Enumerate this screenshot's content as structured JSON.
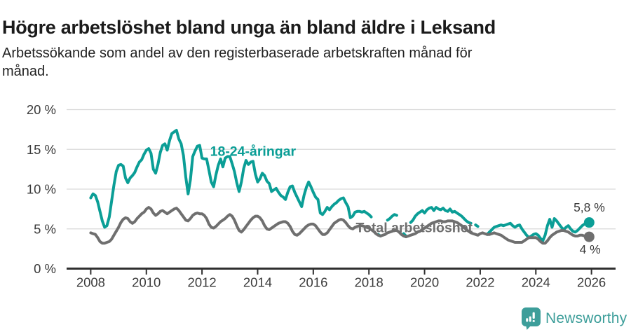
{
  "header": {
    "title": "Högre arbetslöshet bland unga än bland äldre i Leksand",
    "subtitle_lines": [
      "Arbetssökande som andel av den registerbaserade arbetskraften månad för",
      "månad."
    ]
  },
  "footer": {
    "brand": "Newsworthy"
  },
  "colors": {
    "youth_line": "#0b9e96",
    "total_line": "#6f6f6f",
    "grid": "#d9d9d9",
    "axis": "#2f2f2f",
    "logo_teal": "#3d9e9a"
  },
  "chart_data": {
    "type": "line",
    "title": "Högre arbetslöshet bland unga än bland äldre i Leksand",
    "subtitle": "Arbetssökande som andel av den registerbaserade arbetskraften månad för månad.",
    "x_unit": "month",
    "x_range": [
      2008,
      2026
    ],
    "ylim": [
      0,
      20
    ],
    "grid": true,
    "y_ticks": [
      {
        "value": 0,
        "label": "0 %"
      },
      {
        "value": 5,
        "label": "5 %"
      },
      {
        "value": 10,
        "label": "10 %"
      },
      {
        "value": 15,
        "label": "15 %"
      },
      {
        "value": 20,
        "label": "20 %"
      }
    ],
    "x_ticks": [
      {
        "year": 2008,
        "label": "2008"
      },
      {
        "year": 2010,
        "label": "2010"
      },
      {
        "year": 2012,
        "label": "2012"
      },
      {
        "year": 2014,
        "label": "2014"
      },
      {
        "year": 2016,
        "label": "2016"
      },
      {
        "year": 2018,
        "label": "2018"
      },
      {
        "year": 2020,
        "label": "2020"
      },
      {
        "year": 2022,
        "label": "2022"
      },
      {
        "year": 2024,
        "label": "2024"
      },
      {
        "year": 2026,
        "label": "2026"
      }
    ],
    "series": [
      {
        "name": "18-24-åringar",
        "color": "#0b9e96",
        "end_value_label": "5,8 %",
        "start": "2008-01",
        "freq": "monthly",
        "values_by_year": {
          "2008": [
            8.9,
            9.4,
            9.2,
            8.4,
            7.2,
            6.0,
            5.2,
            5.4,
            6.5,
            8.5,
            10.5,
            12.2
          ],
          "2009": [
            13.0,
            13.1,
            12.9,
            11.4,
            10.8,
            11.4,
            11.7,
            12.1,
            12.8,
            13.4,
            13.7,
            14.4
          ],
          "2010": [
            14.9,
            15.1,
            14.5,
            12.5,
            12.0,
            13.1,
            14.6,
            15.5,
            15.7,
            14.9,
            16.1,
            17.0
          ],
          "2011": [
            17.2,
            17.4,
            16.3,
            15.7,
            14.2,
            11.5,
            9.4,
            11.2,
            14.1,
            14.8,
            15.4,
            15.5
          ],
          "2012": [
            13.9,
            13.8,
            13.8,
            12.4,
            10.9,
            10.3,
            11.8,
            13.0,
            13.8,
            12.8,
            13.9,
            14.1
          ],
          "2013": [
            14.1,
            13.2,
            12.2,
            10.8,
            9.7,
            10.9,
            12.6,
            13.6,
            13.1,
            13.4,
            13.5,
            11.9
          ],
          "2014": [
            10.9,
            11.3,
            12.0,
            11.7,
            11.0,
            10.7,
            9.7,
            9.9,
            10.1,
            9.6,
            9.2,
            9.0
          ],
          "2015": [
            8.7,
            9.6,
            10.3,
            10.4,
            9.6,
            9.0,
            8.4,
            7.8,
            9.2,
            10.2,
            10.9,
            10.3
          ],
          "2016": [
            9.6,
            9.0,
            8.7,
            7.0,
            6.8,
            7.2,
            7.7,
            7.4,
            7.8,
            8.1,
            8.3,
            8.6
          ],
          "2017": [
            8.8,
            8.9,
            8.3,
            7.8,
            6.4,
            6.6,
            7.1,
            7.2,
            7.2,
            7.1,
            7.2,
            7.0
          ],
          "2018": [
            6.8,
            6.5,
            null,
            null,
            4.3,
            4.1,
            null,
            null,
            6.1,
            6.3,
            6.6,
            6.8
          ],
          "2019": [
            6.7,
            null,
            null,
            4.4,
            4.1,
            null,
            5.8,
            6.1,
            6.6,
            6.9,
            7.1,
            7.3
          ],
          "2020": [
            7.0,
            7.4,
            7.6,
            7.7,
            7.3,
            7.7,
            7.5,
            7.4,
            7.6,
            7.3,
            7.2,
            7.5
          ],
          "2021": [
            7.1,
            7.2,
            7.0,
            6.8,
            6.6,
            6.3,
            6.0,
            5.8,
            5.7,
            null,
            5.5,
            5.3
          ],
          "2022": [
            null,
            null,
            null,
            4.3,
            4.6,
            4.9,
            5.2,
            5.3,
            5.4,
            5.5,
            5.4,
            5.5
          ],
          "2023": [
            5.6,
            5.7,
            5.4,
            5.2,
            5.4,
            5.5,
            5.0,
            4.6,
            4.2,
            3.9,
            4.1,
            4.3
          ],
          "2024": [
            4.4,
            4.2,
            3.8,
            3.5,
            4.2,
            5.4,
            6.2,
            5.2,
            6.3,
            6.0,
            5.6,
            5.2
          ],
          "2025": [
            4.9,
            5.2,
            5.4,
            5.0,
            4.7,
            4.6,
            4.8,
            5.1,
            5.4,
            5.6,
            5.7,
            5.8
          ]
        }
      },
      {
        "name": "Total arbetslöshet",
        "color": "#6f6f6f",
        "end_value_label": "4 %",
        "start": "2008-01",
        "freq": "monthly",
        "values_by_year": {
          "2008": [
            4.5,
            4.4,
            4.3,
            3.9,
            3.4,
            3.2,
            3.2,
            3.3,
            3.4,
            3.7,
            4.2,
            4.7
          ],
          "2009": [
            5.2,
            5.8,
            6.2,
            6.4,
            6.3,
            5.9,
            5.7,
            5.9,
            6.3,
            6.6,
            6.9,
            7.1
          ],
          "2010": [
            7.5,
            7.7,
            7.5,
            7.0,
            6.7,
            6.9,
            7.2,
            7.3,
            7.1,
            6.9,
            7.1,
            7.3
          ],
          "2011": [
            7.5,
            7.6,
            7.3,
            6.9,
            6.5,
            6.1,
            6.0,
            6.3,
            6.7,
            6.9,
            7.0,
            6.9
          ],
          "2012": [
            6.9,
            6.7,
            6.3,
            5.6,
            5.2,
            5.1,
            5.3,
            5.6,
            5.9,
            6.1,
            6.3,
            6.6
          ],
          "2013": [
            6.8,
            6.6,
            6.1,
            5.4,
            4.8,
            4.6,
            4.9,
            5.3,
            5.7,
            6.1,
            6.4,
            6.6
          ],
          "2014": [
            6.6,
            6.4,
            6.0,
            5.4,
            5.0,
            4.9,
            5.1,
            5.3,
            5.5,
            5.7,
            5.8,
            5.9
          ],
          "2015": [
            5.9,
            5.7,
            5.3,
            4.7,
            4.3,
            4.2,
            4.4,
            4.7,
            5.0,
            5.3,
            5.5,
            5.6
          ],
          "2016": [
            5.6,
            5.4,
            5.0,
            4.6,
            4.3,
            4.3,
            4.5,
            4.9,
            5.3,
            5.7,
            5.9,
            6.1
          ],
          "2017": [
            6.2,
            6.1,
            5.8,
            5.4,
            5.1,
            5.0,
            5.2,
            5.3,
            5.4,
            5.4,
            5.3,
            5.2
          ],
          "2018": [
            5.1,
            4.9,
            4.7,
            4.4,
            4.2,
            4.1,
            4.2,
            4.3,
            4.5,
            4.6,
            4.7,
            4.8
          ],
          "2019": [
            4.8,
            4.6,
            4.3,
            4.1,
            4.0,
            4.1,
            4.2,
            4.3,
            4.4,
            4.6,
            4.7,
            4.9
          ],
          "2020": [
            5.1,
            5.3,
            5.5,
            5.7,
            5.8,
            5.9,
            6.0,
            6.0,
            5.9,
            5.9,
            6.0,
            6.0
          ],
          "2021": [
            6.0,
            5.9,
            5.8,
            5.6,
            5.4,
            5.2,
            4.9,
            4.7,
            4.5,
            4.4,
            4.3,
            4.2
          ],
          "2022": [
            4.4,
            4.5,
            4.4,
            4.3,
            4.3,
            4.4,
            4.5,
            4.4,
            4.3,
            4.2,
            4.0,
            3.8
          ],
          "2023": [
            3.6,
            3.5,
            3.4,
            3.3,
            3.3,
            3.3,
            3.3,
            3.5,
            3.7,
            3.9,
            3.9,
            3.9
          ],
          "2024": [
            3.9,
            3.7,
            3.4,
            3.2,
            3.2,
            3.5,
            3.9,
            4.2,
            4.4,
            4.6,
            4.7,
            4.8
          ],
          "2025": [
            4.8,
            4.7,
            4.6,
            4.4,
            4.2,
            4.1,
            4.1,
            4.2,
            4.2,
            4.1,
            4.1,
            4.0
          ]
        }
      }
    ],
    "annotations": [
      {
        "text": "18-24-åringar",
        "t": 2012.29,
        "v": 14.2,
        "role": "series-label",
        "series": 0,
        "anchor": "start"
      },
      {
        "text": "Total arbetslöshet",
        "t": 2017.53,
        "v": 4.6,
        "role": "series-label",
        "series": 1,
        "anchor": "start"
      },
      {
        "text": "5,8 %",
        "t": 2025.92,
        "v": 7.2,
        "role": "end-value",
        "series": 0,
        "anchor": "middle"
      },
      {
        "text": "4 %",
        "t": 2025.95,
        "v": 1.9,
        "role": "end-value",
        "series": 1,
        "anchor": "middle"
      }
    ],
    "legend_position": "inline-labels"
  }
}
